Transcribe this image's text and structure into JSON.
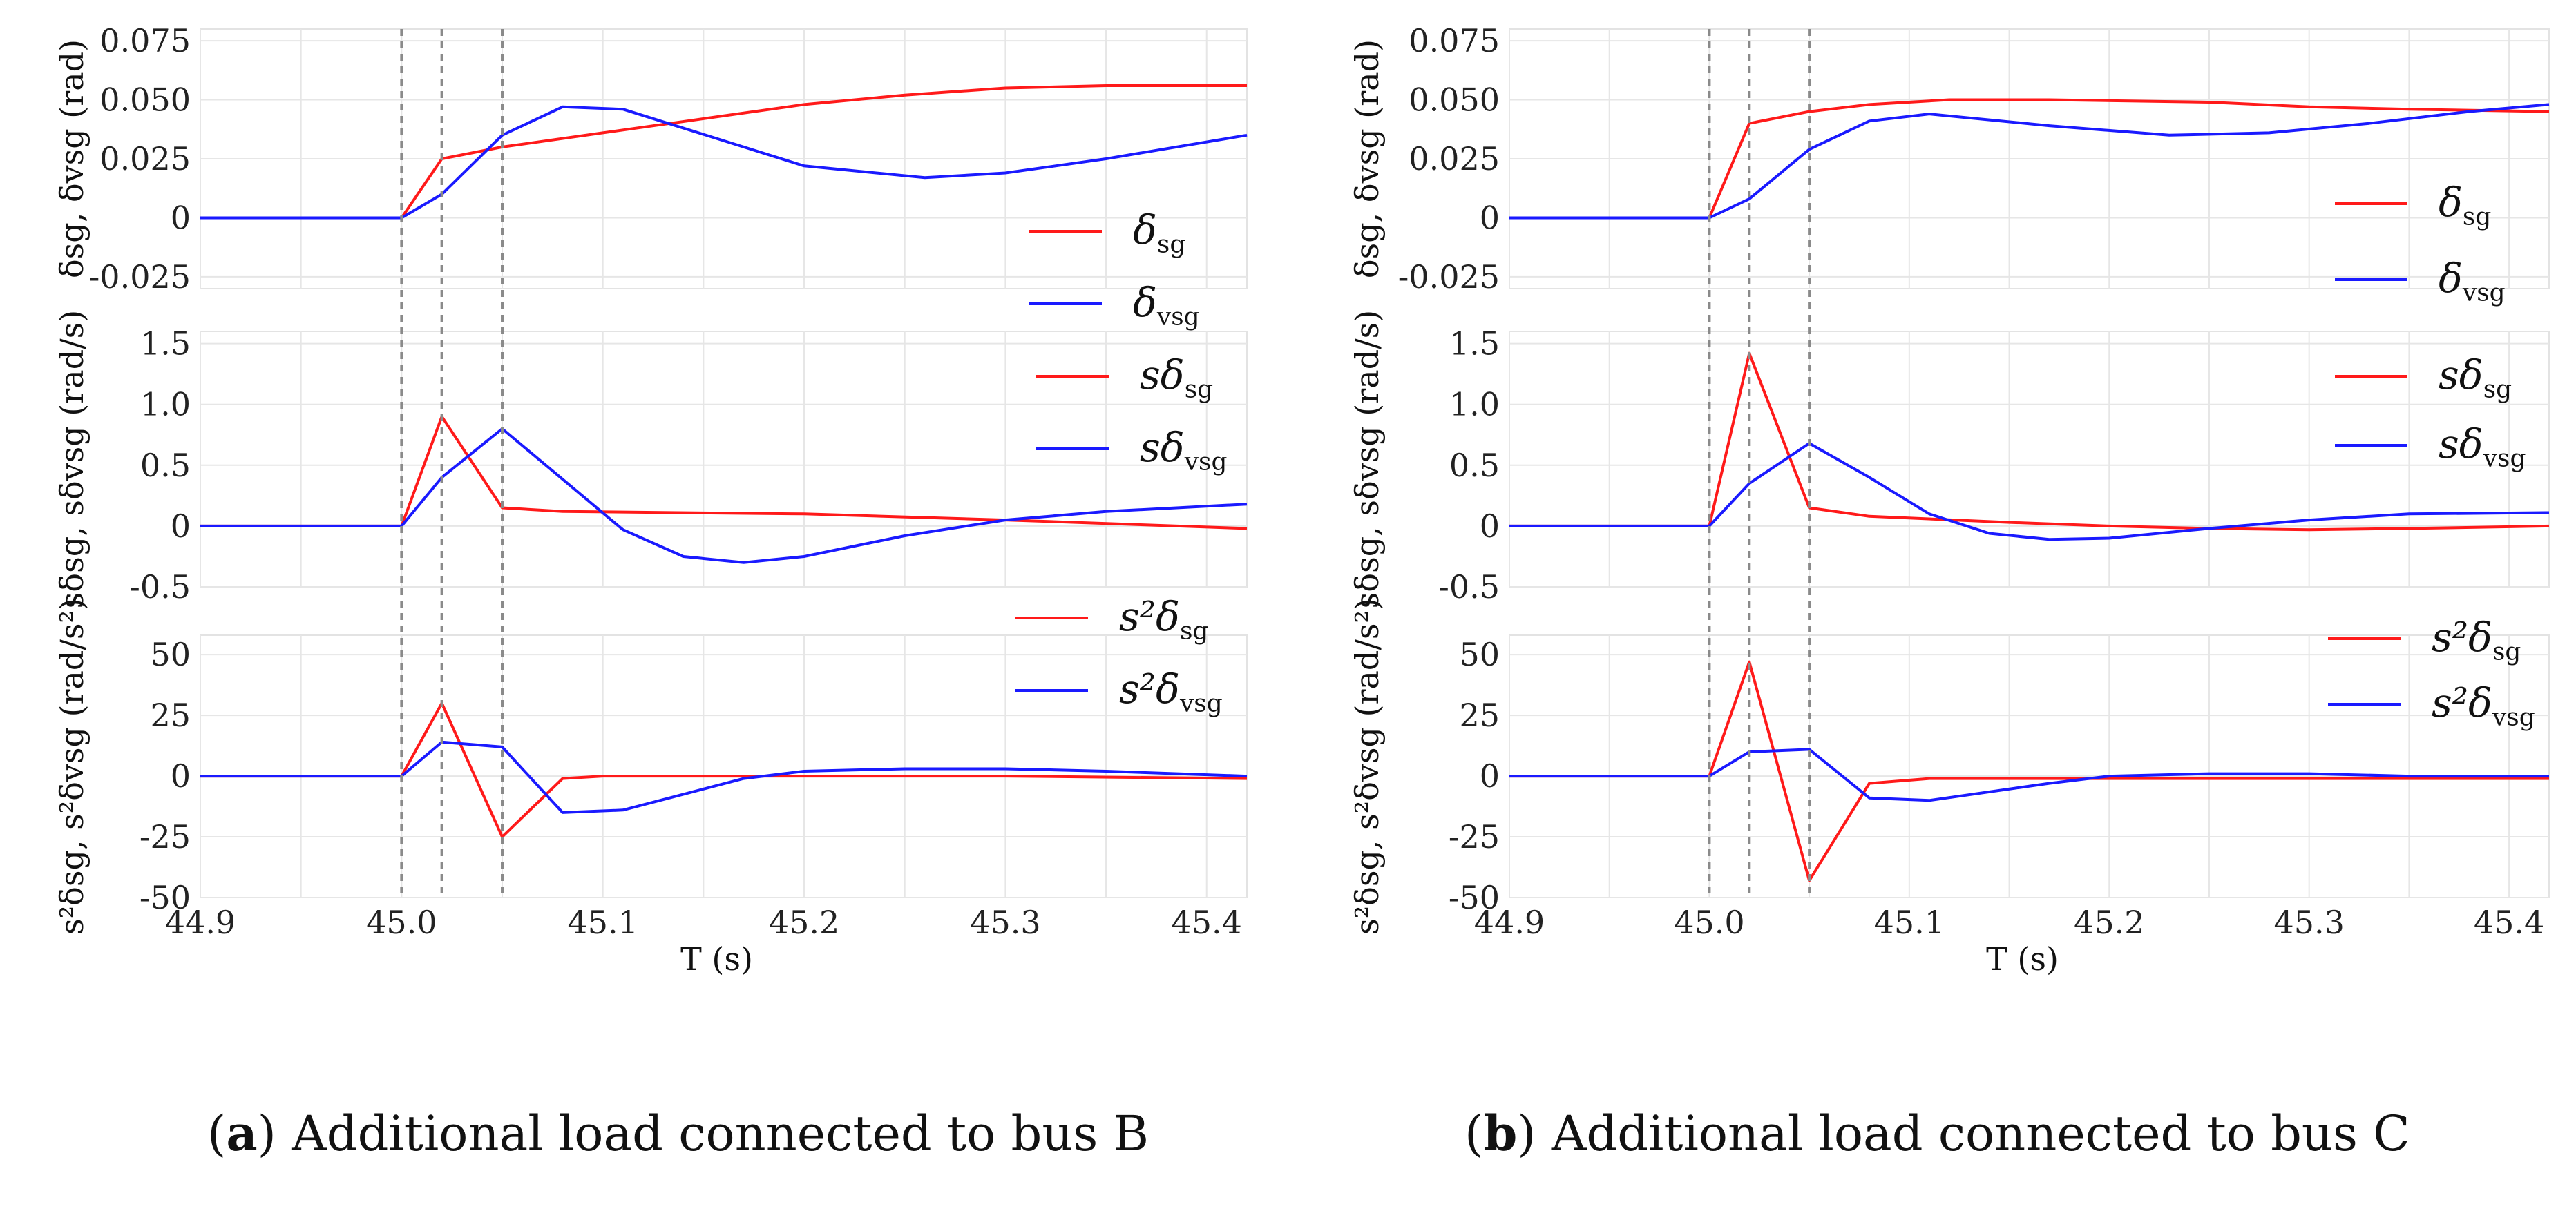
{
  "chart_data": [
    {
      "type": "line",
      "caption_letter": "a",
      "caption_text": "Additional load connected to bus B",
      "xlabel": "T (s)",
      "xlim": [
        44.9,
        45.42
      ],
      "xticks": [
        "44.9",
        "45.0",
        "45.1",
        "45.2",
        "45.3",
        "45.4"
      ],
      "event_lines_x": [
        45.0,
        45.02,
        45.05
      ],
      "panels": [
        {
          "ylabel": "δsg, δvsg (rad)",
          "ylim": [
            -0.03,
            0.08
          ],
          "yticks": [
            0.075,
            0.05,
            0.025,
            0,
            -0.025
          ],
          "ytick_labels": [
            "0.075",
            "0.050",
            "0.025",
            "0",
            "-0.025"
          ],
          "legend": [
            "δsg",
            "δvsg"
          ],
          "series": [
            {
              "name": "δsg",
              "color": "#ff1a1a",
              "x": [
                44.9,
                45.0,
                45.02,
                45.05,
                45.1,
                45.15,
                45.2,
                45.25,
                45.3,
                45.35,
                45.42
              ],
              "y": [
                0,
                0,
                0.025,
                0.03,
                0.036,
                0.042,
                0.048,
                0.052,
                0.055,
                0.056,
                0.056
              ]
            },
            {
              "name": "δvsg",
              "color": "#1a1aff",
              "x": [
                44.9,
                45.0,
                45.02,
                45.05,
                45.08,
                45.11,
                45.17,
                45.2,
                45.26,
                45.3,
                45.35,
                45.42
              ],
              "y": [
                0,
                0,
                0.01,
                0.035,
                0.047,
                0.046,
                0.03,
                0.022,
                0.017,
                0.019,
                0.025,
                0.035
              ]
            }
          ]
        },
        {
          "ylabel": "sδsg, sδvsg (rad/s)",
          "ylim": [
            -0.5,
            1.6
          ],
          "yticks": [
            1.5,
            1.0,
            0.5,
            0,
            -0.5
          ],
          "ytick_labels": [
            "1.5",
            "1.0",
            "0.5",
            "0",
            "-0.5"
          ],
          "legend": [
            "sδsg",
            "sδvsg"
          ],
          "series": [
            {
              "name": "sδsg",
              "color": "#ff1a1a",
              "x": [
                44.9,
                45.0,
                45.02,
                45.05,
                45.08,
                45.2,
                45.3,
                45.42
              ],
              "y": [
                0,
                0,
                0.9,
                0.15,
                0.12,
                0.1,
                0.05,
                -0.02
              ]
            },
            {
              "name": "sδvsg",
              "color": "#1a1aff",
              "x": [
                44.9,
                45.0,
                45.02,
                45.05,
                45.11,
                45.14,
                45.17,
                45.2,
                45.25,
                45.3,
                45.35,
                45.42
              ],
              "y": [
                0,
                0,
                0.4,
                0.8,
                -0.03,
                -0.25,
                -0.3,
                -0.25,
                -0.08,
                0.05,
                0.12,
                0.18
              ]
            }
          ]
        },
        {
          "ylabel": "s²δsg, s²δvsg (rad/s²)",
          "ylim": [
            -50,
            58
          ],
          "yticks": [
            50,
            25,
            0,
            -25,
            -50
          ],
          "ytick_labels": [
            "50",
            "25",
            "0",
            "-25",
            "-50"
          ],
          "legend": [
            "s²δsg",
            "s²δvsg"
          ],
          "series": [
            {
              "name": "s²δsg",
              "color": "#ff1a1a",
              "x": [
                44.9,
                45.0,
                45.02,
                45.05,
                45.08,
                45.1,
                45.2,
                45.3,
                45.42
              ],
              "y": [
                0,
                0,
                30,
                -25,
                -1,
                0,
                0,
                0,
                -1
              ]
            },
            {
              "name": "s²δvsg",
              "color": "#1a1aff",
              "x": [
                44.9,
                45.0,
                45.02,
                45.05,
                45.08,
                45.11,
                45.17,
                45.2,
                45.25,
                45.3,
                45.35,
                45.42
              ],
              "y": [
                0,
                0,
                14,
                12,
                -15,
                -14,
                -1,
                2,
                3,
                3,
                2,
                0
              ]
            }
          ]
        }
      ]
    },
    {
      "type": "line",
      "caption_letter": "b",
      "caption_text": "Additional load connected to bus C",
      "xlabel": "T (s)",
      "xlim": [
        44.9,
        45.42
      ],
      "xticks": [
        "44.9",
        "45.0",
        "45.1",
        "45.2",
        "45.3",
        "45.4"
      ],
      "event_lines_x": [
        45.0,
        45.02,
        45.05
      ],
      "panels": [
        {
          "ylabel": "δsg, δvsg (rad)",
          "ylim": [
            -0.03,
            0.08
          ],
          "yticks": [
            0.075,
            0.05,
            0.025,
            0,
            -0.025
          ],
          "ytick_labels": [
            "0.075",
            "0.050",
            "0.025",
            "0",
            "-0.025"
          ],
          "legend": [
            "δsg",
            "δvsg"
          ],
          "series": [
            {
              "name": "δsg",
              "color": "#ff1a1a",
              "x": [
                44.9,
                45.0,
                45.02,
                45.05,
                45.08,
                45.12,
                45.17,
                45.25,
                45.3,
                45.35,
                45.42
              ],
              "y": [
                0,
                0,
                0.04,
                0.045,
                0.048,
                0.05,
                0.05,
                0.049,
                0.047,
                0.046,
                0.045
              ]
            },
            {
              "name": "δvsg",
              "color": "#1a1aff",
              "x": [
                44.9,
                45.0,
                45.02,
                45.05,
                45.08,
                45.11,
                45.17,
                45.23,
                45.28,
                45.33,
                45.38,
                45.42
              ],
              "y": [
                0,
                0,
                0.008,
                0.029,
                0.041,
                0.044,
                0.039,
                0.035,
                0.036,
                0.04,
                0.045,
                0.048
              ]
            }
          ]
        },
        {
          "ylabel": "sδsg, sδvsg (rad/s)",
          "ylim": [
            -0.5,
            1.6
          ],
          "yticks": [
            1.5,
            1.0,
            0.5,
            0,
            -0.5
          ],
          "ytick_labels": [
            "1.5",
            "1.0",
            "0.5",
            "0",
            "-0.5"
          ],
          "legend": [
            "sδsg",
            "sδvsg"
          ],
          "series": [
            {
              "name": "sδsg",
              "color": "#ff1a1a",
              "x": [
                44.9,
                45.0,
                45.02,
                45.05,
                45.08,
                45.15,
                45.2,
                45.25,
                45.3,
                45.35,
                45.42
              ],
              "y": [
                0,
                0,
                1.42,
                0.15,
                0.08,
                0.03,
                0.0,
                -0.02,
                -0.03,
                -0.02,
                0.0
              ]
            },
            {
              "name": "sδvsg",
              "color": "#1a1aff",
              "x": [
                44.9,
                45.0,
                45.02,
                45.05,
                45.08,
                45.11,
                45.14,
                45.17,
                45.2,
                45.25,
                45.3,
                45.35,
                45.42
              ],
              "y": [
                0,
                0,
                0.35,
                0.68,
                0.4,
                0.1,
                -0.06,
                -0.11,
                -0.1,
                -0.02,
                0.05,
                0.1,
                0.11
              ]
            }
          ]
        },
        {
          "ylabel": "s²δsg, s²δvsg (rad/s²)",
          "ylim": [
            -50,
            58
          ],
          "yticks": [
            50,
            25,
            0,
            -25,
            -50
          ],
          "ytick_labels": [
            "50",
            "25",
            "0",
            "-25",
            "-50"
          ],
          "legend": [
            "s²δsg",
            "s²δvsg"
          ],
          "series": [
            {
              "name": "s²δsg",
              "color": "#ff1a1a",
              "x": [
                44.9,
                45.0,
                45.02,
                45.05,
                45.08,
                45.11,
                45.2,
                45.3,
                45.42
              ],
              "y": [
                0,
                0,
                47,
                -43,
                -3,
                -1,
                -1,
                -1,
                -1
              ]
            },
            {
              "name": "s²δvsg",
              "color": "#1a1aff",
              "x": [
                44.9,
                45.0,
                45.02,
                45.05,
                45.08,
                45.11,
                45.17,
                45.2,
                45.25,
                45.3,
                45.35,
                45.42
              ],
              "y": [
                0,
                0,
                10,
                11,
                -9,
                -10,
                -3,
                0,
                1,
                1,
                0,
                0
              ]
            }
          ]
        }
      ]
    }
  ]
}
